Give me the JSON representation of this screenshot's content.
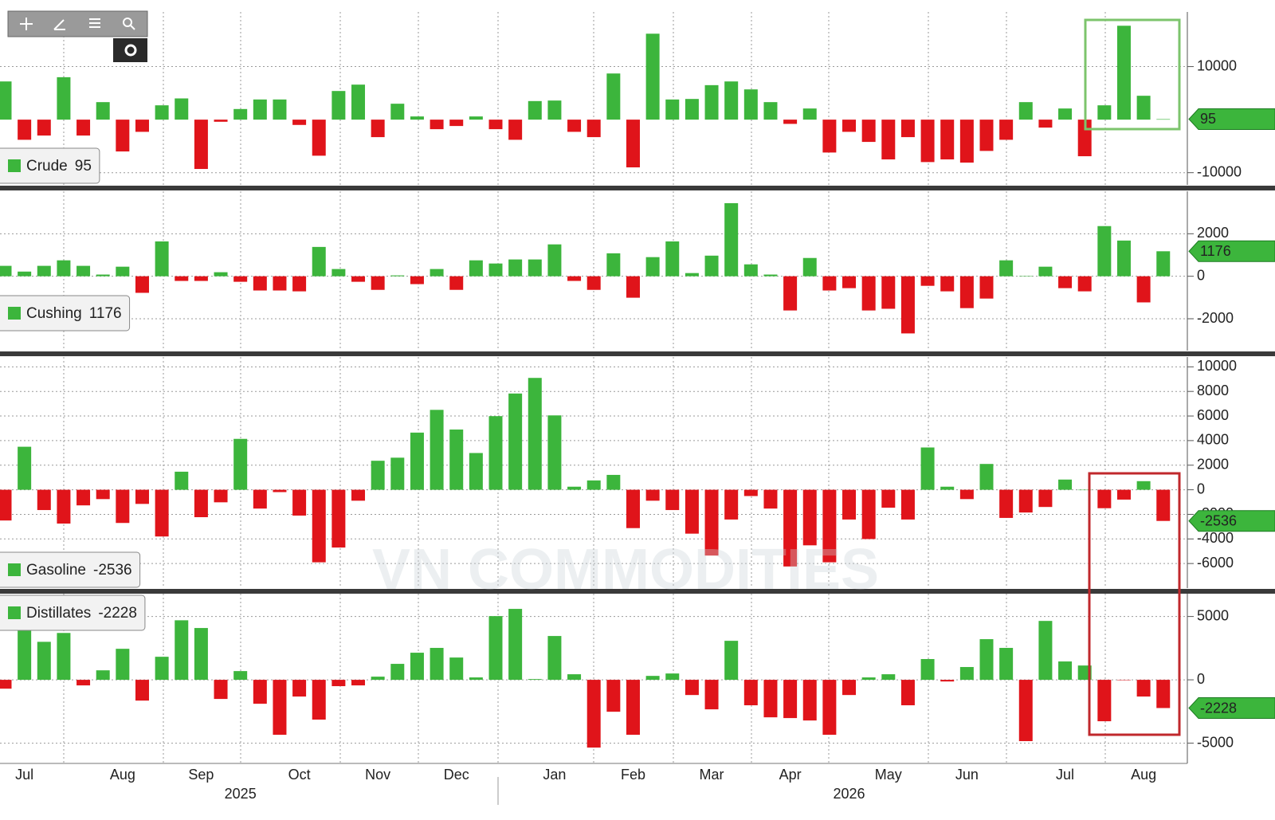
{
  "watermark": "VN COMMODITIES",
  "chart_data": [
    {
      "type": "bar",
      "name": "Crude",
      "up_color": "#3cb53c",
      "down_color": "#e0141a",
      "label_color": "#3cb53c",
      "ylim": [
        -12300,
        20300
      ],
      "yticks": [
        10000,
        -10000
      ],
      "grid": true,
      "values": [
        7200,
        -3800,
        -3000,
        8000,
        -3000,
        3300,
        -6000,
        -2300,
        2700,
        4000,
        -9300,
        -400,
        2000,
        3800,
        3800,
        -1000,
        -6800,
        5400,
        6600,
        -3300,
        3000,
        600,
        -1800,
        -1200,
        600,
        -1800,
        -3800,
        3500,
        3600,
        -2300,
        -3300,
        8700,
        -9000,
        16200,
        3800,
        3900,
        6500,
        7200,
        5700,
        3300,
        -800,
        2100,
        -6200,
        -2300,
        -4200,
        -7500,
        -3300,
        -8000,
        -7500,
        -8100,
        -5900,
        -3800,
        3300,
        -1500,
        2100,
        -6900,
        2700,
        17700,
        4500,
        95
      ]
    },
    {
      "type": "bar",
      "name": "Cushing",
      "up_color": "#3cb53c",
      "down_color": "#e0141a",
      "label_color": "#3cb53c",
      "ylim": [
        -3500,
        4000
      ],
      "yticks": [
        2000,
        0,
        -2000
      ],
      "grid": true,
      "values": [
        490,
        220,
        490,
        750,
        490,
        80,
        450,
        -780,
        1640,
        -220,
        -220,
        190,
        -260,
        -670,
        -670,
        -710,
        1380,
        340,
        -260,
        -640,
        40,
        -370,
        340,
        -640,
        750,
        600,
        790,
        790,
        1500,
        -220,
        -640,
        1080,
        -1010,
        900,
        1640,
        150,
        970,
        3440,
        560,
        80,
        -1610,
        860,
        -670,
        -560,
        -1610,
        -1530,
        -2690,
        -450,
        -710,
        -1500,
        -1050,
        750,
        10,
        450,
        -560,
        -710,
        2360,
        1680,
        -1230,
        1176
      ]
    },
    {
      "type": "bar",
      "name": "Gasoline",
      "up_color": "#3cb53c",
      "down_color": "#e0141a",
      "label_color": "#3cb53c",
      "ylim": [
        -8000,
        10800
      ],
      "yticks": [
        10000,
        8000,
        6000,
        4000,
        2000,
        0,
        -2000,
        -4000,
        -6000
      ],
      "grid": true,
      "values": [
        -2500,
        3500,
        -1650,
        -2750,
        -1270,
        -760,
        -2700,
        -1150,
        -3800,
        1470,
        -2230,
        -1020,
        4140,
        -1530,
        -190,
        -2100,
        -5900,
        -4700,
        -890,
        2360,
        2610,
        4650,
        6500,
        4900,
        2990,
        5990,
        7830,
        9100,
        6050,
        250,
        760,
        1210,
        -3120,
        -890,
        -1650,
        -3570,
        -5350,
        -2420,
        -510,
        -1530,
        -6240,
        -4520,
        -5900,
        -2420,
        -4010,
        -1460,
        -2420,
        3440,
        250,
        -760,
        2100,
        -2290,
        -1850,
        -1400,
        830,
        0,
        -1500,
        -800,
        700,
        -2536
      ]
    },
    {
      "type": "bar",
      "name": "Distillates",
      "up_color": "#3cb53c",
      "down_color": "#e0141a",
      "label_color": "#3cb53c",
      "ylim": [
        -6600,
        6800
      ],
      "yticks": [
        5000,
        0,
        -5000
      ],
      "grid": true,
      "categories": [
        null,
        "Jul",
        null,
        null,
        null,
        null,
        "Aug",
        null,
        null,
        null,
        "Sep",
        null,
        null,
        null,
        null,
        "Oct",
        null,
        null,
        null,
        "Nov",
        null,
        null,
        null,
        "Dec",
        null,
        null,
        null,
        null,
        "Jan",
        null,
        null,
        null,
        "Feb",
        null,
        null,
        null,
        "Mar",
        null,
        null,
        null,
        "Apr",
        null,
        null,
        null,
        null,
        "May",
        null,
        null,
        null,
        "Jun",
        null,
        null,
        null,
        null,
        "Jul",
        null,
        null,
        null,
        "Aug",
        null
      ],
      "years": [
        null,
        null,
        null,
        null,
        null,
        null,
        null,
        null,
        null,
        null,
        null,
        null,
        "2025",
        null,
        null,
        null,
        null,
        null,
        null,
        null,
        null,
        null,
        null,
        null,
        null,
        null,
        null,
        null,
        null,
        null,
        null,
        null,
        null,
        null,
        null,
        null,
        null,
        null,
        null,
        null,
        null,
        null,
        null,
        "2026",
        null,
        null,
        null,
        null,
        null,
        null,
        null,
        null,
        null,
        null,
        null,
        null,
        null,
        null,
        null,
        null
      ],
      "values": [
        -700,
        4200,
        3000,
        3700,
        -440,
        750,
        2450,
        -1640,
        1820,
        4700,
        4090,
        -1510,
        690,
        -1890,
        -4340,
        -1320,
        -3140,
        -500,
        -440,
        250,
        1260,
        2140,
        2520,
        1760,
        190,
        5030,
        5600,
        60,
        3460,
        440,
        -5350,
        -2520,
        -4340,
        310,
        500,
        -1200,
        -2330,
        3080,
        -2010,
        -2960,
        -3020,
        -3210,
        -4340,
        -1200,
        190,
        440,
        -2010,
        1640,
        -130,
        1010,
        3210,
        2520,
        -4840,
        4650,
        1450,
        1130,
        -3270,
        -30,
        -1320,
        -2228
      ]
    }
  ]
}
